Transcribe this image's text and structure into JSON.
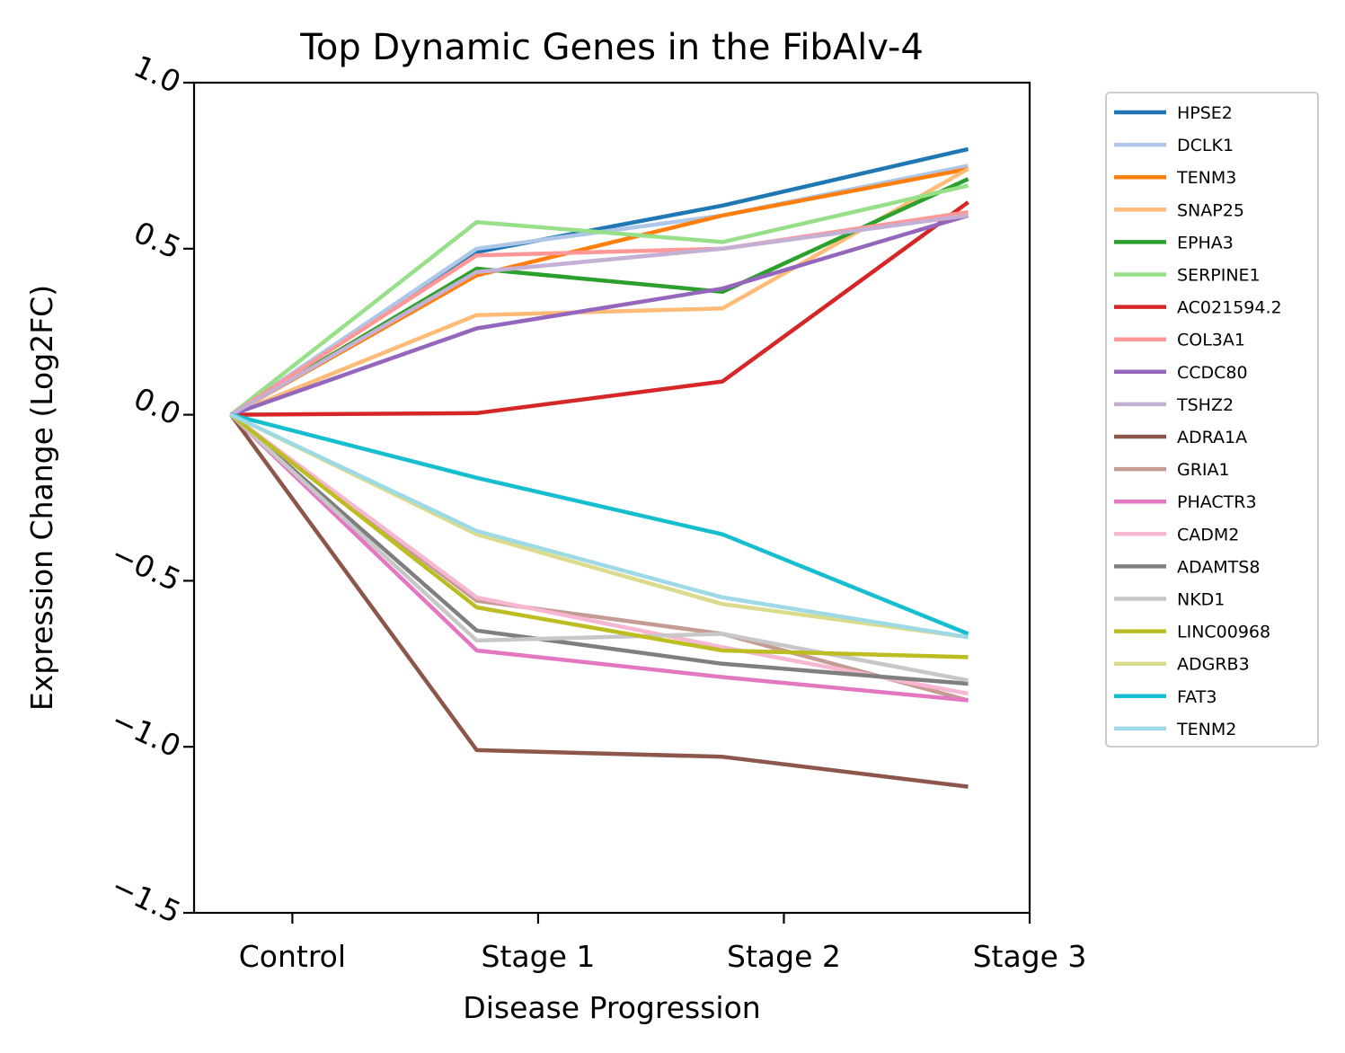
{
  "chart_data": {
    "type": "line",
    "title": "Top Dynamic Genes in the FibAlv-4",
    "xlabel": "Disease Progression",
    "ylabel": "Expression Change (Log2FC)",
    "x_ticks": [
      "Control",
      "Stage 1",
      "Stage 2",
      "Stage 3"
    ],
    "y_ticks": [
      "1.0",
      "0.5",
      "0.0",
      "−0.5",
      "−1.0",
      "−1.5"
    ],
    "y_tick_values": [
      1.0,
      0.5,
      0.0,
      -0.5,
      -1.0,
      -1.5
    ],
    "ylim": [
      -1.5,
      1.0
    ],
    "x_tick_positions": [
      0,
      1,
      2,
      3
    ],
    "xlim": [
      -0.4,
      3.0
    ],
    "grid": false,
    "legend_position": "outside-right",
    "series": [
      {
        "name": "HPSE2",
        "color": "#1f77b4",
        "x": [
          -0.25,
          0.75,
          1.75,
          2.75
        ],
        "values": [
          0.0,
          0.49,
          0.63,
          0.8
        ]
      },
      {
        "name": "DCLK1",
        "color": "#aec7e8",
        "x": [
          -0.25,
          0.75,
          1.75,
          2.75
        ],
        "values": [
          0.0,
          0.5,
          0.6,
          0.75
        ]
      },
      {
        "name": "TENM3",
        "color": "#ff7f0e",
        "x": [
          -0.25,
          0.75,
          1.75,
          2.75
        ],
        "values": [
          0.0,
          0.42,
          0.6,
          0.74
        ]
      },
      {
        "name": "SNAP25",
        "color": "#ffbb78",
        "x": [
          -0.25,
          0.75,
          1.75,
          2.75
        ],
        "values": [
          0.0,
          0.3,
          0.32,
          0.74
        ]
      },
      {
        "name": "EPHA3",
        "color": "#2ca02c",
        "x": [
          -0.25,
          0.75,
          1.75,
          2.75
        ],
        "values": [
          0.0,
          0.44,
          0.37,
          0.71
        ]
      },
      {
        "name": "SERPINE1",
        "color": "#98df8a",
        "x": [
          -0.25,
          0.75,
          1.75,
          2.75
        ],
        "values": [
          0.0,
          0.58,
          0.52,
          0.69
        ]
      },
      {
        "name": "AC021594.2",
        "color": "#d62728",
        "x": [
          -0.25,
          0.75,
          1.75,
          2.75
        ],
        "values": [
          0.0,
          0.005,
          0.1,
          0.64
        ]
      },
      {
        "name": "COL3A1",
        "color": "#ff9896",
        "x": [
          -0.25,
          0.75,
          1.75,
          2.75
        ],
        "values": [
          0.0,
          0.48,
          0.5,
          0.61
        ]
      },
      {
        "name": "CCDC80",
        "color": "#9467bd",
        "x": [
          -0.25,
          0.75,
          1.75,
          2.75
        ],
        "values": [
          0.0,
          0.26,
          0.38,
          0.6
        ]
      },
      {
        "name": "TSHZ2",
        "color": "#c5b0d5",
        "x": [
          -0.25,
          0.75,
          1.75,
          2.75
        ],
        "values": [
          0.0,
          0.43,
          0.5,
          0.6
        ]
      },
      {
        "name": "ADRA1A",
        "color": "#8c564b",
        "x": [
          -0.25,
          0.75,
          1.75,
          2.75
        ],
        "values": [
          0.0,
          -1.01,
          -1.03,
          -1.12
        ]
      },
      {
        "name": "GRIA1",
        "color": "#c49c94",
        "x": [
          -0.25,
          0.75,
          1.75,
          2.75
        ],
        "values": [
          0.0,
          -0.56,
          -0.66,
          -0.86
        ]
      },
      {
        "name": "PHACTR3",
        "color": "#e377c2",
        "x": [
          -0.25,
          0.75,
          1.75,
          2.75
        ],
        "values": [
          0.0,
          -0.71,
          -0.79,
          -0.86
        ]
      },
      {
        "name": "CADM2",
        "color": "#f7b6d2",
        "x": [
          -0.25,
          0.75,
          1.75,
          2.75
        ],
        "values": [
          0.0,
          -0.55,
          -0.7,
          -0.84
        ]
      },
      {
        "name": "ADAMTS8",
        "color": "#7f7f7f",
        "x": [
          -0.25,
          0.75,
          1.75,
          2.75
        ],
        "values": [
          0.0,
          -0.65,
          -0.75,
          -0.81
        ]
      },
      {
        "name": "NKD1",
        "color": "#c7c7c7",
        "x": [
          -0.25,
          0.75,
          1.75,
          2.75
        ],
        "values": [
          0.0,
          -0.68,
          -0.66,
          -0.8
        ]
      },
      {
        "name": "LINC00968",
        "color": "#bcbd22",
        "x": [
          -0.25,
          0.75,
          1.75,
          2.75
        ],
        "values": [
          0.0,
          -0.58,
          -0.71,
          -0.73
        ]
      },
      {
        "name": "ADGRB3",
        "color": "#dbdb8d",
        "x": [
          -0.25,
          0.75,
          1.75,
          2.75
        ],
        "values": [
          0.0,
          -0.36,
          -0.57,
          -0.67
        ]
      },
      {
        "name": "FAT3",
        "color": "#17becf",
        "x": [
          -0.25,
          0.75,
          1.75,
          2.75
        ],
        "values": [
          0.0,
          -0.19,
          -0.36,
          -0.66
        ]
      },
      {
        "name": "TENM2",
        "color": "#9edae5",
        "x": [
          -0.25,
          0.75,
          1.75,
          2.75
        ],
        "values": [
          0.0,
          -0.35,
          -0.55,
          -0.67
        ]
      }
    ]
  }
}
